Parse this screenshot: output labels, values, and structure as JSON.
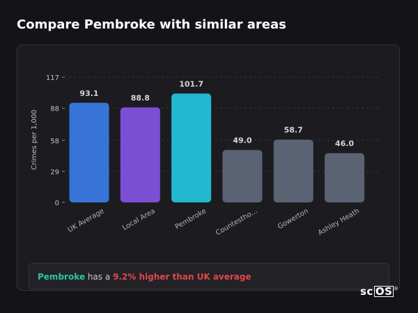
{
  "page": {
    "title": "Compare Pembroke with similar areas"
  },
  "chart_data": {
    "type": "bar",
    "ylabel": "Crimes per 1,000",
    "ylim": [
      0,
      117
    ],
    "yticks": [
      0,
      29,
      58,
      88,
      117
    ],
    "grid": "dashed horizontal",
    "categories": [
      "UK Average",
      "Local Area",
      "Pembroke",
      "Countestho...",
      "Gowerton",
      "Ashley Heath"
    ],
    "values": [
      93.1,
      88.8,
      101.7,
      49.0,
      58.7,
      46.0
    ],
    "value_labels": [
      "93.1",
      "88.8",
      "101.7",
      "49.0",
      "58.7",
      "46.0"
    ],
    "colors": [
      "#3874d8",
      "#7b4fd4",
      "#22b8d0",
      "#5a6374",
      "#5a6374",
      "#5a6374"
    ]
  },
  "summary": {
    "area": "Pembroke",
    "middle": " has a ",
    "comparison": "9.2% higher than UK average"
  },
  "logo": {
    "prefix": "sc",
    "boxed": "OS",
    "mark": "®"
  },
  "colors": {
    "background": "#141418",
    "card": "#1c1c20",
    "area_highlight": "#2ec4a0",
    "comparison_highlight": "#e0474c"
  }
}
